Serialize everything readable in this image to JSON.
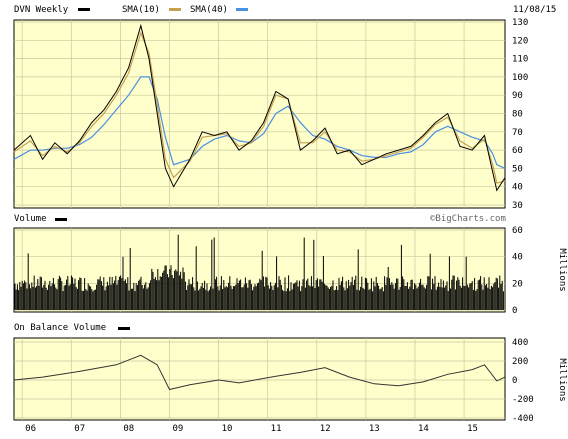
{
  "header": {
    "symbol_label": "DVN Weekly",
    "sma10_label": "SMA(10)",
    "sma40_label": "SMA(40)",
    "date": "11/08/15"
  },
  "colors": {
    "panel_bg": "#ffffcc",
    "grid": "#c8c8a0",
    "price": "#000000",
    "sma10": "#c8a050",
    "sma40": "#4a90e2"
  },
  "volume_panel": {
    "title": "Volume",
    "credit": "©BigCharts.com",
    "unit": "Millions"
  },
  "obv_panel": {
    "title": "On Balance Volume",
    "unit": "Millions"
  },
  "chart_data": [
    {
      "type": "line",
      "panel": "price",
      "x": [
        "2005-11",
        "2006-03",
        "2006-06",
        "2006-09",
        "2006-12",
        "2007-03",
        "2007-06",
        "2007-09",
        "2007-12",
        "2008-03",
        "2008-06",
        "2008-08",
        "2008-10",
        "2008-12",
        "2009-02",
        "2009-06",
        "2009-09",
        "2009-12",
        "2010-03",
        "2010-06",
        "2010-09",
        "2010-12",
        "2011-03",
        "2011-06",
        "2011-09",
        "2011-12",
        "2012-03",
        "2012-06",
        "2012-09",
        "2012-12",
        "2013-03",
        "2013-06",
        "2013-09",
        "2013-12",
        "2014-03",
        "2014-06",
        "2014-09",
        "2014-12",
        "2015-03",
        "2015-06",
        "2015-08",
        "2015-09",
        "2015-11"
      ],
      "series": [
        {
          "name": "DVN Weekly",
          "values": [
            60,
            68,
            55,
            64,
            58,
            65,
            75,
            82,
            92,
            105,
            128,
            110,
            80,
            50,
            40,
            55,
            70,
            68,
            70,
            60,
            65,
            75,
            92,
            88,
            60,
            65,
            72,
            58,
            60,
            52,
            55,
            58,
            60,
            62,
            68,
            75,
            80,
            62,
            60,
            68,
            48,
            38,
            45
          ]
        },
        {
          "name": "SMA(10)",
          "values": [
            59,
            65,
            57,
            62,
            59,
            64,
            73,
            80,
            90,
            102,
            124,
            113,
            85,
            55,
            45,
            54,
            67,
            68,
            69,
            62,
            64,
            73,
            90,
            88,
            64,
            64,
            70,
            60,
            59,
            54,
            55,
            57,
            59,
            61,
            67,
            74,
            78,
            65,
            61,
            66,
            52,
            42,
            43
          ]
        },
        {
          "name": "SMA(40)",
          "values": [
            55,
            60,
            60,
            61,
            61,
            63,
            67,
            74,
            82,
            90,
            100,
            100,
            88,
            67,
            52,
            55,
            62,
            66,
            68,
            65,
            64,
            69,
            80,
            84,
            75,
            68,
            66,
            62,
            60,
            57,
            56,
            56,
            58,
            59,
            63,
            70,
            73,
            70,
            67,
            65,
            58,
            52,
            50
          ]
        }
      ],
      "ylim": [
        30,
        130
      ],
      "yticks": [
        30,
        40,
        50,
        60,
        70,
        80,
        90,
        100,
        110,
        120,
        130
      ],
      "xticks": [
        "06",
        "07",
        "08",
        "09",
        "10",
        "11",
        "12",
        "13",
        "14",
        "15"
      ],
      "grid": true
    },
    {
      "type": "bar",
      "panel": "volume",
      "ylabel": "Millions",
      "ylim": [
        0,
        60
      ],
      "yticks": [
        0,
        20,
        40,
        60
      ],
      "note": "weekly volume bars approx. 10–35M, spikes to ~55M in early 2007 and late 2008, ~43M late 2015"
    },
    {
      "type": "line",
      "panel": "on_balance_volume",
      "ylabel": "Millions",
      "ylim": [
        -400,
        400
      ],
      "yticks": [
        -400,
        -200,
        0,
        200,
        400
      ],
      "x": [
        "2005-11",
        "2006-06",
        "2007-03",
        "2007-12",
        "2008-06",
        "2008-10",
        "2009-01",
        "2009-06",
        "2010-01",
        "2010-06",
        "2011-03",
        "2011-09",
        "2012-03",
        "2012-09",
        "2013-03",
        "2013-09",
        "2014-03",
        "2014-09",
        "2015-03",
        "2015-06",
        "2015-09",
        "2015-11"
      ],
      "values": [
        0,
        30,
        90,
        160,
        260,
        160,
        -100,
        -50,
        0,
        -30,
        40,
        80,
        130,
        30,
        -40,
        -60,
        -20,
        60,
        110,
        160,
        -10,
        30
      ]
    }
  ]
}
